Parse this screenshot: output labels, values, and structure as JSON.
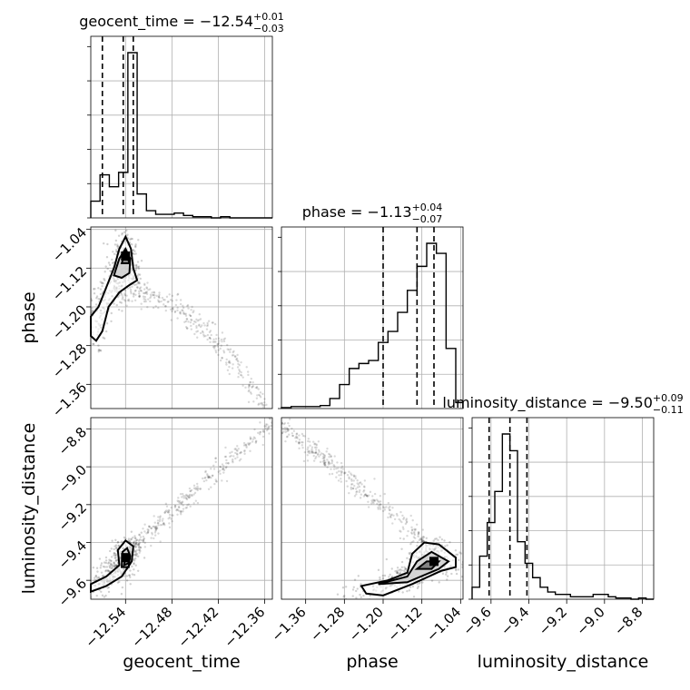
{
  "chart_data": {
    "type": "corner",
    "parameters": [
      {
        "key": "geocent_time",
        "label": "geocent_time",
        "range": [
          -12.585,
          -12.35
        ],
        "ticks": [
          -12.54,
          -12.48,
          -12.42,
          -12.36
        ],
        "tick_labels": [
          "−12.54",
          "−12.48",
          "−12.42",
          "−12.36"
        ]
      },
      {
        "key": "phase",
        "label": "phase",
        "range": [
          -1.41,
          -1.035
        ],
        "ticks": [
          -1.36,
          -1.28,
          -1.2,
          -1.12,
          -1.04
        ],
        "tick_labels": [
          "−1.36",
          "−1.28",
          "−1.20",
          "−1.12",
          "−1.04"
        ]
      },
      {
        "key": "luminosity_distance",
        "label": "luminosity_distance",
        "range": [
          -9.7,
          -8.74
        ],
        "ticks": [
          -9.6,
          -9.4,
          -9.2,
          -9.0,
          -8.8
        ],
        "tick_labels": [
          "−9.6",
          "−9.4",
          "−9.2",
          "−9.0",
          "−8.8"
        ]
      }
    ],
    "titles": [
      {
        "text": "geocent_time = −12.54",
        "sup": "+0.01",
        "sub": "−0.03"
      },
      {
        "text": "phase = −1.13",
        "sup": "+0.04",
        "sub": "−0.07"
      },
      {
        "text": "luminosity_distance = −9.50",
        "sup": "+0.09",
        "sub": "−0.11"
      }
    ],
    "histograms": [
      {
        "edges": [
          -12.585,
          -12.573,
          -12.561,
          -12.549,
          -12.537,
          -12.525,
          -12.513,
          -12.501,
          -12.489,
          -12.477,
          -12.465,
          -12.453,
          -12.441,
          -12.429,
          -12.417,
          -12.405,
          -12.393,
          -12.381,
          -12.369,
          -12.357,
          -12.35
        ],
        "counts": [
          14,
          36,
          26,
          38,
          138,
          20,
          6,
          3,
          3,
          4,
          2,
          1,
          1,
          0,
          1,
          0,
          0,
          0,
          0,
          0
        ],
        "quantiles": [
          -12.57,
          -12.543,
          -12.53
        ]
      },
      {
        "edges": [
          -1.41,
          -1.39,
          -1.37,
          -1.35,
          -1.33,
          -1.31,
          -1.29,
          -1.27,
          -1.25,
          -1.23,
          -1.21,
          -1.19,
          -1.17,
          -1.15,
          -1.13,
          -1.11,
          -1.09,
          -1.07,
          -1.05,
          -1.035
        ],
        "counts": [
          1,
          2,
          2,
          2,
          3,
          10,
          24,
          40,
          45,
          48,
          66,
          77,
          96,
          118,
          142,
          165,
          155,
          60,
          6
        ],
        "quantiles": [
          -1.2,
          -1.13,
          -1.095
        ]
      },
      {
        "edges": [
          -9.7,
          -9.66,
          -9.62,
          -9.58,
          -9.54,
          -9.5,
          -9.46,
          -9.42,
          -9.38,
          -9.34,
          -9.3,
          -9.26,
          -9.22,
          -9.18,
          -9.14,
          -9.1,
          -9.06,
          -9.02,
          -8.98,
          -8.94,
          -8.9,
          -8.86,
          -8.82,
          -8.78,
          -8.74
        ],
        "counts": [
          10,
          36,
          64,
          90,
          138,
          124,
          48,
          30,
          18,
          10,
          6,
          4,
          4,
          2,
          2,
          2,
          4,
          4,
          2,
          1,
          1,
          0,
          1,
          0
        ],
        "quantiles": [
          -9.61,
          -9.5,
          -9.41
        ]
      }
    ],
    "contours": [
      {
        "x": "geocent_time",
        "y": "phase",
        "peak": [
          -12.54,
          -1.095
        ],
        "levels": [
          [
            [
              -12.585,
              -1.22
            ],
            [
              -12.575,
              -1.2
            ],
            [
              -12.565,
              -1.16
            ],
            [
              -12.555,
              -1.12
            ],
            [
              -12.548,
              -1.08
            ],
            [
              -12.54,
              -1.055
            ],
            [
              -12.533,
              -1.08
            ],
            [
              -12.53,
              -1.12
            ],
            [
              -12.525,
              -1.145
            ],
            [
              -12.535,
              -1.155
            ],
            [
              -12.548,
              -1.17
            ],
            [
              -12.562,
              -1.2
            ],
            [
              -12.57,
              -1.25
            ],
            [
              -12.578,
              -1.27
            ],
            [
              -12.585,
              -1.26
            ]
          ],
          [
            [
              -12.555,
              -1.135
            ],
            [
              -12.548,
              -1.1
            ],
            [
              -12.54,
              -1.08
            ],
            [
              -12.534,
              -1.1
            ],
            [
              -12.535,
              -1.13
            ],
            [
              -12.545,
              -1.14
            ]
          ],
          [
            [
              -12.545,
              -1.11
            ],
            [
              -12.54,
              -1.085
            ],
            [
              -12.535,
              -1.11
            ]
          ]
        ]
      },
      {
        "x": "geocent_time",
        "y": "luminosity_distance",
        "peak": [
          -12.54,
          -9.48
        ],
        "levels": [
          [
            [
              -12.585,
              -9.66
            ],
            [
              -12.585,
              -9.62
            ],
            [
              -12.565,
              -9.58
            ],
            [
              -12.548,
              -9.52
            ],
            [
              -12.55,
              -9.44
            ],
            [
              -12.54,
              -9.39
            ],
            [
              -12.53,
              -9.42
            ],
            [
              -12.532,
              -9.5
            ],
            [
              -12.545,
              -9.58
            ],
            [
              -12.565,
              -9.63
            ]
          ],
          [
            [
              -12.545,
              -9.53
            ],
            [
              -12.544,
              -9.45
            ],
            [
              -12.538,
              -9.43
            ],
            [
              -12.534,
              -9.47
            ],
            [
              -12.536,
              -9.53
            ]
          ],
          [
            [
              -12.542,
              -9.52
            ],
            [
              -12.539,
              -9.46
            ],
            [
              -12.536,
              -9.51
            ]
          ]
        ]
      },
      {
        "x": "phase",
        "y": "luminosity_distance",
        "peak": [
          -1.095,
          -9.5
        ],
        "levels": [
          [
            [
              -1.235,
              -9.67
            ],
            [
              -1.245,
              -9.63
            ],
            [
              -1.19,
              -9.6
            ],
            [
              -1.15,
              -9.56
            ],
            [
              -1.14,
              -9.46
            ],
            [
              -1.115,
              -9.4
            ],
            [
              -1.085,
              -9.41
            ],
            [
              -1.05,
              -9.48
            ],
            [
              -1.05,
              -9.53
            ],
            [
              -1.08,
              -9.55
            ],
            [
              -1.14,
              -9.62
            ],
            [
              -1.2,
              -9.68
            ]
          ],
          [
            [
              -1.21,
              -9.62
            ],
            [
              -1.15,
              -9.58
            ],
            [
              -1.13,
              -9.5
            ],
            [
              -1.1,
              -9.45
            ],
            [
              -1.065,
              -9.5
            ],
            [
              -1.085,
              -9.54
            ],
            [
              -1.15,
              -9.61
            ]
          ],
          [
            [
              -1.13,
              -9.54
            ],
            [
              -1.11,
              -9.5
            ],
            [
              -1.085,
              -9.5
            ],
            [
              -1.1,
              -9.54
            ]
          ]
        ]
      }
    ]
  }
}
